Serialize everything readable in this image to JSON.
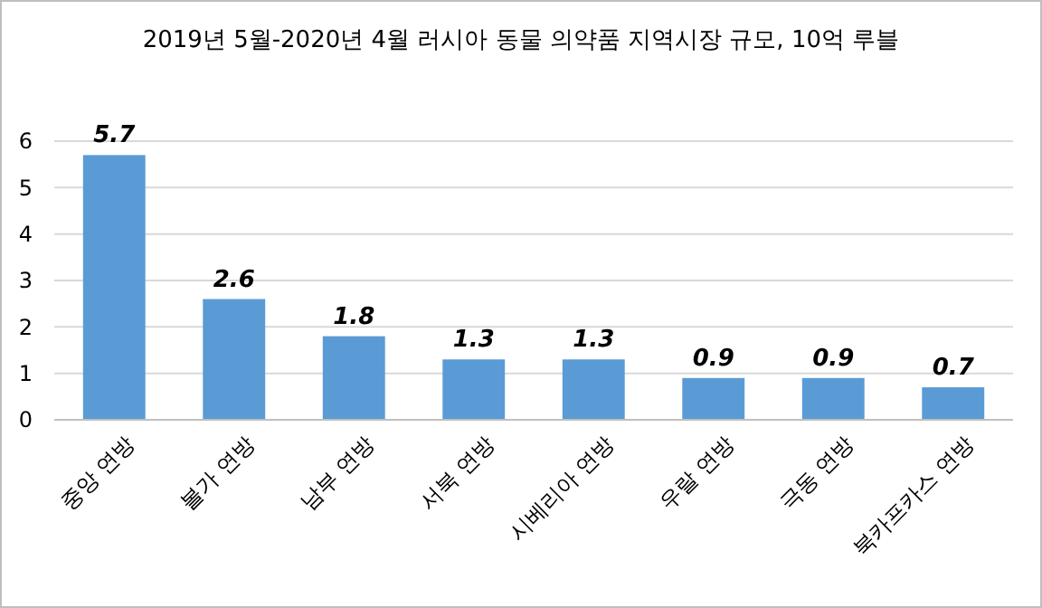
{
  "chart_data": {
    "type": "bar",
    "title": "2019년 5월-2020년 4월 러시아 동물 의약품 지역시장 규모, 10억 루블",
    "categories": [
      "중앙 연방",
      "볼가 연방",
      "남부 연방",
      "서북 연방",
      "시베리아 연방",
      "우랄 연방",
      "극동 연방",
      "북카프카스 연방"
    ],
    "values": [
      5.7,
      2.6,
      1.8,
      1.3,
      1.3,
      0.9,
      0.9,
      0.7
    ],
    "color": "#5b9bd5",
    "ylim": [
      0,
      6
    ],
    "yticks": [
      0,
      1,
      2,
      3,
      4,
      5,
      6
    ],
    "grid": "y",
    "data_labels": true
  }
}
